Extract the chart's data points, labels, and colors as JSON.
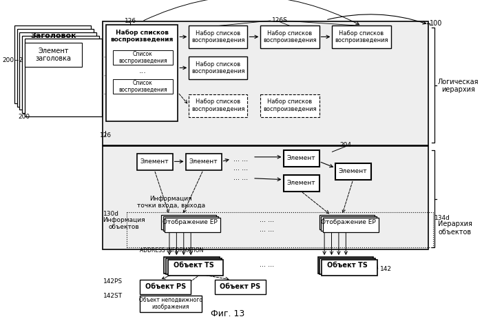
{
  "fig_title": "Фиг. 13",
  "label_100": "100",
  "label_126": "126",
  "label_126S": "126S",
  "label_200": "200",
  "label_200_2": "200−2",
  "label_126b": "126",
  "label_204": "204",
  "label_130d": "130d",
  "label_134d": "134d",
  "label_142": "142",
  "label_142PS": "142PS",
  "label_142ST": "142ST",
  "text_zagolovok": "Заголовок",
  "text_element_zag": "Элемент\nзаголовка",
  "text_nabor": "Набор списков\nвоспроизведения",
  "text_spisok": "Список\nвоспроизведения",
  "text_element": "Элемент",
  "text_info_entry": "Информация\nточки входа, выхода",
  "text_info_obj": "Информация\nобъектов",
  "text_addr": "ADDRESS INFORMATION",
  "text_ep": "Отображение EP",
  "text_ts": "Объект TS",
  "text_ps": "Объект PS",
  "text_still": "Объект неподвижного\nизображения",
  "text_logical": "Логическая\nиерархия",
  "text_obj_hier": "Иерархия\nобъектов"
}
